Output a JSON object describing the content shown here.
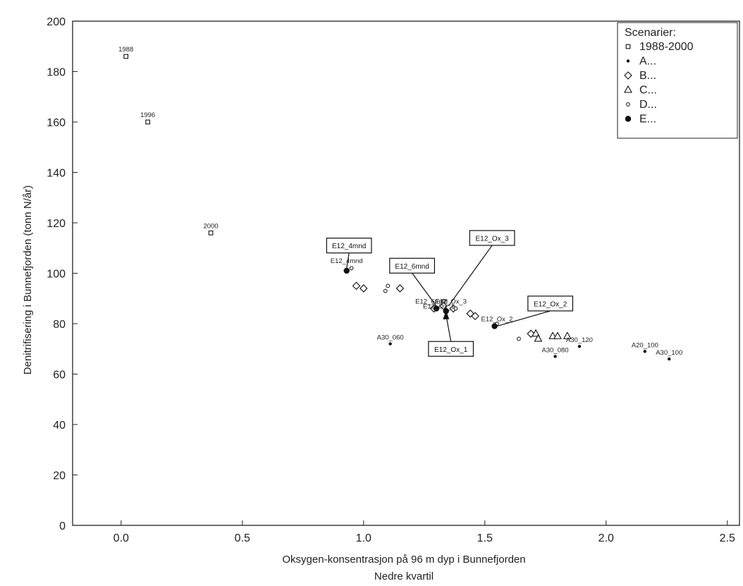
{
  "chart_data": {
    "type": "scatter",
    "xlabel": "Oksygen-konsentrasjon på 96 m dyp i Bunnefjorden",
    "xlabel2": "Nedre kvartil",
    "ylabel": "Denitrifisering i Bunnefjorden (tonn N/år)",
    "xlim": [
      -0.2,
      2.55
    ],
    "ylim": [
      0,
      200
    ],
    "xticks": [
      "0.0",
      "0.5",
      "1.0",
      "1.5",
      "2.0",
      "2.5"
    ],
    "xtick_values": [
      0.0,
      0.5,
      1.0,
      1.5,
      2.0,
      2.5
    ],
    "yticks": [
      "0",
      "20",
      "40",
      "60",
      "80",
      "100",
      "120",
      "140",
      "160",
      "180",
      "200"
    ],
    "ytick_values": [
      0,
      20,
      40,
      60,
      80,
      100,
      120,
      140,
      160,
      180,
      200
    ],
    "grid": false,
    "legend": {
      "title": "Scenarier:",
      "placement": "top-right",
      "entries": [
        {
          "name": "1988-2000",
          "marker": "square-open"
        },
        {
          "name": "A...",
          "marker": "dot-small"
        },
        {
          "name": "B...",
          "marker": "diamond-open"
        },
        {
          "name": "C...",
          "marker": "triangle-open"
        },
        {
          "name": "D...",
          "marker": "circle-open-small"
        },
        {
          "name": "E...",
          "marker": "circle-filled"
        }
      ]
    },
    "series": [
      {
        "name": "1988-2000",
        "marker": "square-open",
        "points": [
          {
            "x": 0.02,
            "y": 186,
            "label": "1988"
          },
          {
            "x": 0.11,
            "y": 160,
            "label": "1996"
          },
          {
            "x": 0.37,
            "y": 116,
            "label": "2000"
          }
        ]
      },
      {
        "name": "A...",
        "marker": "dot-small",
        "points": [
          {
            "x": 1.11,
            "y": 72,
            "label": "A30_060"
          },
          {
            "x": 1.79,
            "y": 67,
            "label": "A30_080"
          },
          {
            "x": 1.89,
            "y": 71,
            "label": "A30_120"
          },
          {
            "x": 2.16,
            "y": 69,
            "label": "A20_100"
          },
          {
            "x": 2.26,
            "y": 66,
            "label": "A30_100"
          }
        ]
      },
      {
        "name": "B...",
        "marker": "diamond-open",
        "points": [
          {
            "x": 0.97,
            "y": 95
          },
          {
            "x": 1.0,
            "y": 94
          },
          {
            "x": 1.15,
            "y": 94
          },
          {
            "x": 1.29,
            "y": 86
          },
          {
            "x": 1.33,
            "y": 87
          },
          {
            "x": 1.37,
            "y": 86
          },
          {
            "x": 1.44,
            "y": 84
          },
          {
            "x": 1.46,
            "y": 83
          },
          {
            "x": 1.69,
            "y": 76
          }
        ]
      },
      {
        "name": "C...",
        "marker": "triangle-open",
        "points": [
          {
            "x": 1.71,
            "y": 76
          },
          {
            "x": 1.72,
            "y": 74
          },
          {
            "x": 1.78,
            "y": 75
          },
          {
            "x": 1.8,
            "y": 75
          },
          {
            "x": 1.84,
            "y": 75
          }
        ]
      },
      {
        "name": "D...",
        "marker": "circle-open-small",
        "points": [
          {
            "x": 0.95,
            "y": 102
          },
          {
            "x": 1.09,
            "y": 93
          },
          {
            "x": 1.1,
            "y": 95
          },
          {
            "x": 1.33,
            "y": 89
          },
          {
            "x": 1.38,
            "y": 86
          },
          {
            "x": 1.55,
            "y": 80
          },
          {
            "x": 1.64,
            "y": 74
          }
        ]
      },
      {
        "name": "E...",
        "marker": "circle-filled",
        "points": [
          {
            "x": 0.93,
            "y": 101,
            "label": "E12_4mnd"
          },
          {
            "x": 1.3,
            "y": 86
          },
          {
            "x": 1.34,
            "y": 85
          },
          {
            "x": 1.54,
            "y": 79
          }
        ]
      }
    ],
    "overlap_labels": [
      {
        "text": "E12_4mnd",
        "x": 0.93,
        "y": 104
      },
      {
        "text": "E12_6mnd",
        "x": 1.28,
        "y": 88
      },
      {
        "text": "E12_Ox_3",
        "x": 1.36,
        "y": 88
      },
      {
        "text": "E12_Ox_1",
        "x": 1.31,
        "y": 86
      },
      {
        "text": "E12_Ox_2",
        "x": 1.55,
        "y": 81
      }
    ],
    "callouts": [
      {
        "text": "E12_4mnd",
        "bx": 0.94,
        "by": 111,
        "tx": 0.93,
        "ty": 102
      },
      {
        "text": "E12_6mnd",
        "bx": 1.2,
        "by": 103,
        "tx": 1.3,
        "ty": 87
      },
      {
        "text": "E12_Ox_3",
        "bx": 1.53,
        "by": 114,
        "tx": 1.35,
        "ty": 87
      },
      {
        "text": "E12_Ox_2",
        "bx": 1.77,
        "by": 88,
        "tx": 1.55,
        "ty": 79
      },
      {
        "text": "E12_Ox_1",
        "bx": 1.36,
        "by": 70,
        "tx": 1.34,
        "ty": 84,
        "arrow": true
      }
    ]
  }
}
